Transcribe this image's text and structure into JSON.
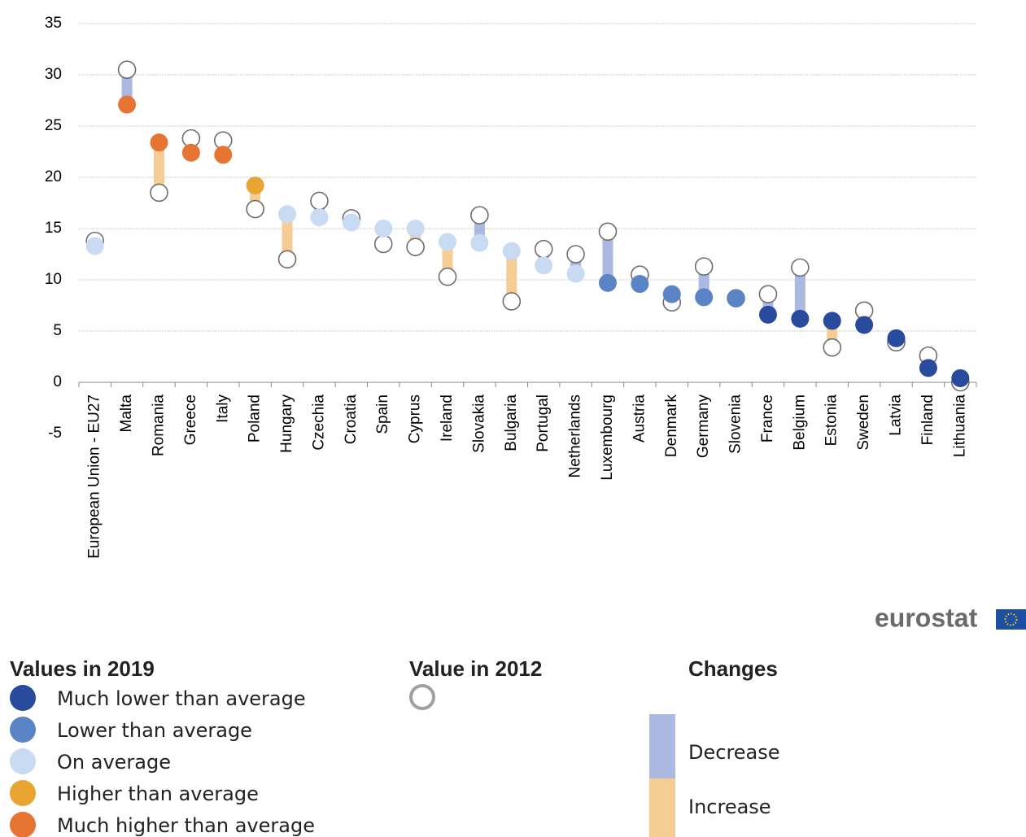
{
  "chart_data": {
    "type": "dumbbell",
    "categories": [
      "European Union - EU27",
      "Malta",
      "Romania",
      "Greece",
      "Italy",
      "Poland",
      "Hungary",
      "Czechia",
      "Croatia",
      "Spain",
      "Cyprus",
      "Ireland",
      "Slovakia",
      "Bulgaria",
      "Portugal",
      "Netherlands",
      "Luxembourg",
      "Austria",
      "Denmark",
      "Germany",
      "Slovenia",
      "France",
      "Belgium",
      "Estonia",
      "Sweden",
      "Latvia",
      "Finland",
      "Lithuania"
    ],
    "series": [
      {
        "name": "Values in 2019",
        "values": [
          13.3,
          27.1,
          23.4,
          22.4,
          22.2,
          19.2,
          16.4,
          16.1,
          15.6,
          15.0,
          15.0,
          13.7,
          13.6,
          12.8,
          11.4,
          10.6,
          9.7,
          9.6,
          8.6,
          8.3,
          8.2,
          6.6,
          6.2,
          6.0,
          5.6,
          4.3,
          1.4,
          0.4
        ]
      },
      {
        "name": "Value in 2012",
        "color": "#ffffff",
        "stroke": "#6e6e6e",
        "values": [
          13.8,
          30.5,
          18.5,
          23.8,
          23.6,
          16.9,
          12.0,
          17.7,
          16.0,
          13.5,
          13.2,
          10.3,
          16.3,
          7.9,
          13.0,
          12.5,
          14.7,
          10.5,
          7.8,
          11.3,
          8.2,
          8.6,
          11.2,
          3.4,
          7.0,
          3.9,
          2.6,
          0.0
        ]
      }
    ],
    "status": [
      "On average",
      "Much higher than average",
      "Much higher than average",
      "Much higher than average",
      "Much higher than average",
      "Higher than average",
      "On average",
      "On average",
      "On average",
      "On average",
      "On average",
      "On average",
      "On average",
      "On average",
      "On average",
      "On average",
      "Lower than average",
      "Lower than average",
      "Lower than average",
      "Lower than average",
      "Lower than average",
      "Much lower than average",
      "Much lower than average",
      "Much lower than average",
      "Much lower than average",
      "Much lower than average",
      "Much lower than average",
      "Much lower than average"
    ],
    "status_legend": [
      {
        "name": "Much lower than average",
        "color": "#2a4a9d"
      },
      {
        "name": "Lower than average",
        "color": "#5b84c6"
      },
      {
        "name": "On average",
        "color": "#c9daf3"
      },
      {
        "name": "Higher than average",
        "color": "#e8a532"
      },
      {
        "name": "Much higher than average",
        "color": "#e67432"
      }
    ],
    "changes_title": "Changes",
    "changes": [
      {
        "name": "Decrease",
        "color": "#aab8e2"
      },
      {
        "name": "Increase",
        "color": "#f5cd94"
      }
    ],
    "ylim": [
      -5,
      35
    ],
    "yticks": [
      -5,
      0,
      5,
      10,
      15,
      20,
      25,
      30,
      35
    ],
    "grid": true,
    "source_logo": "eurostat"
  }
}
